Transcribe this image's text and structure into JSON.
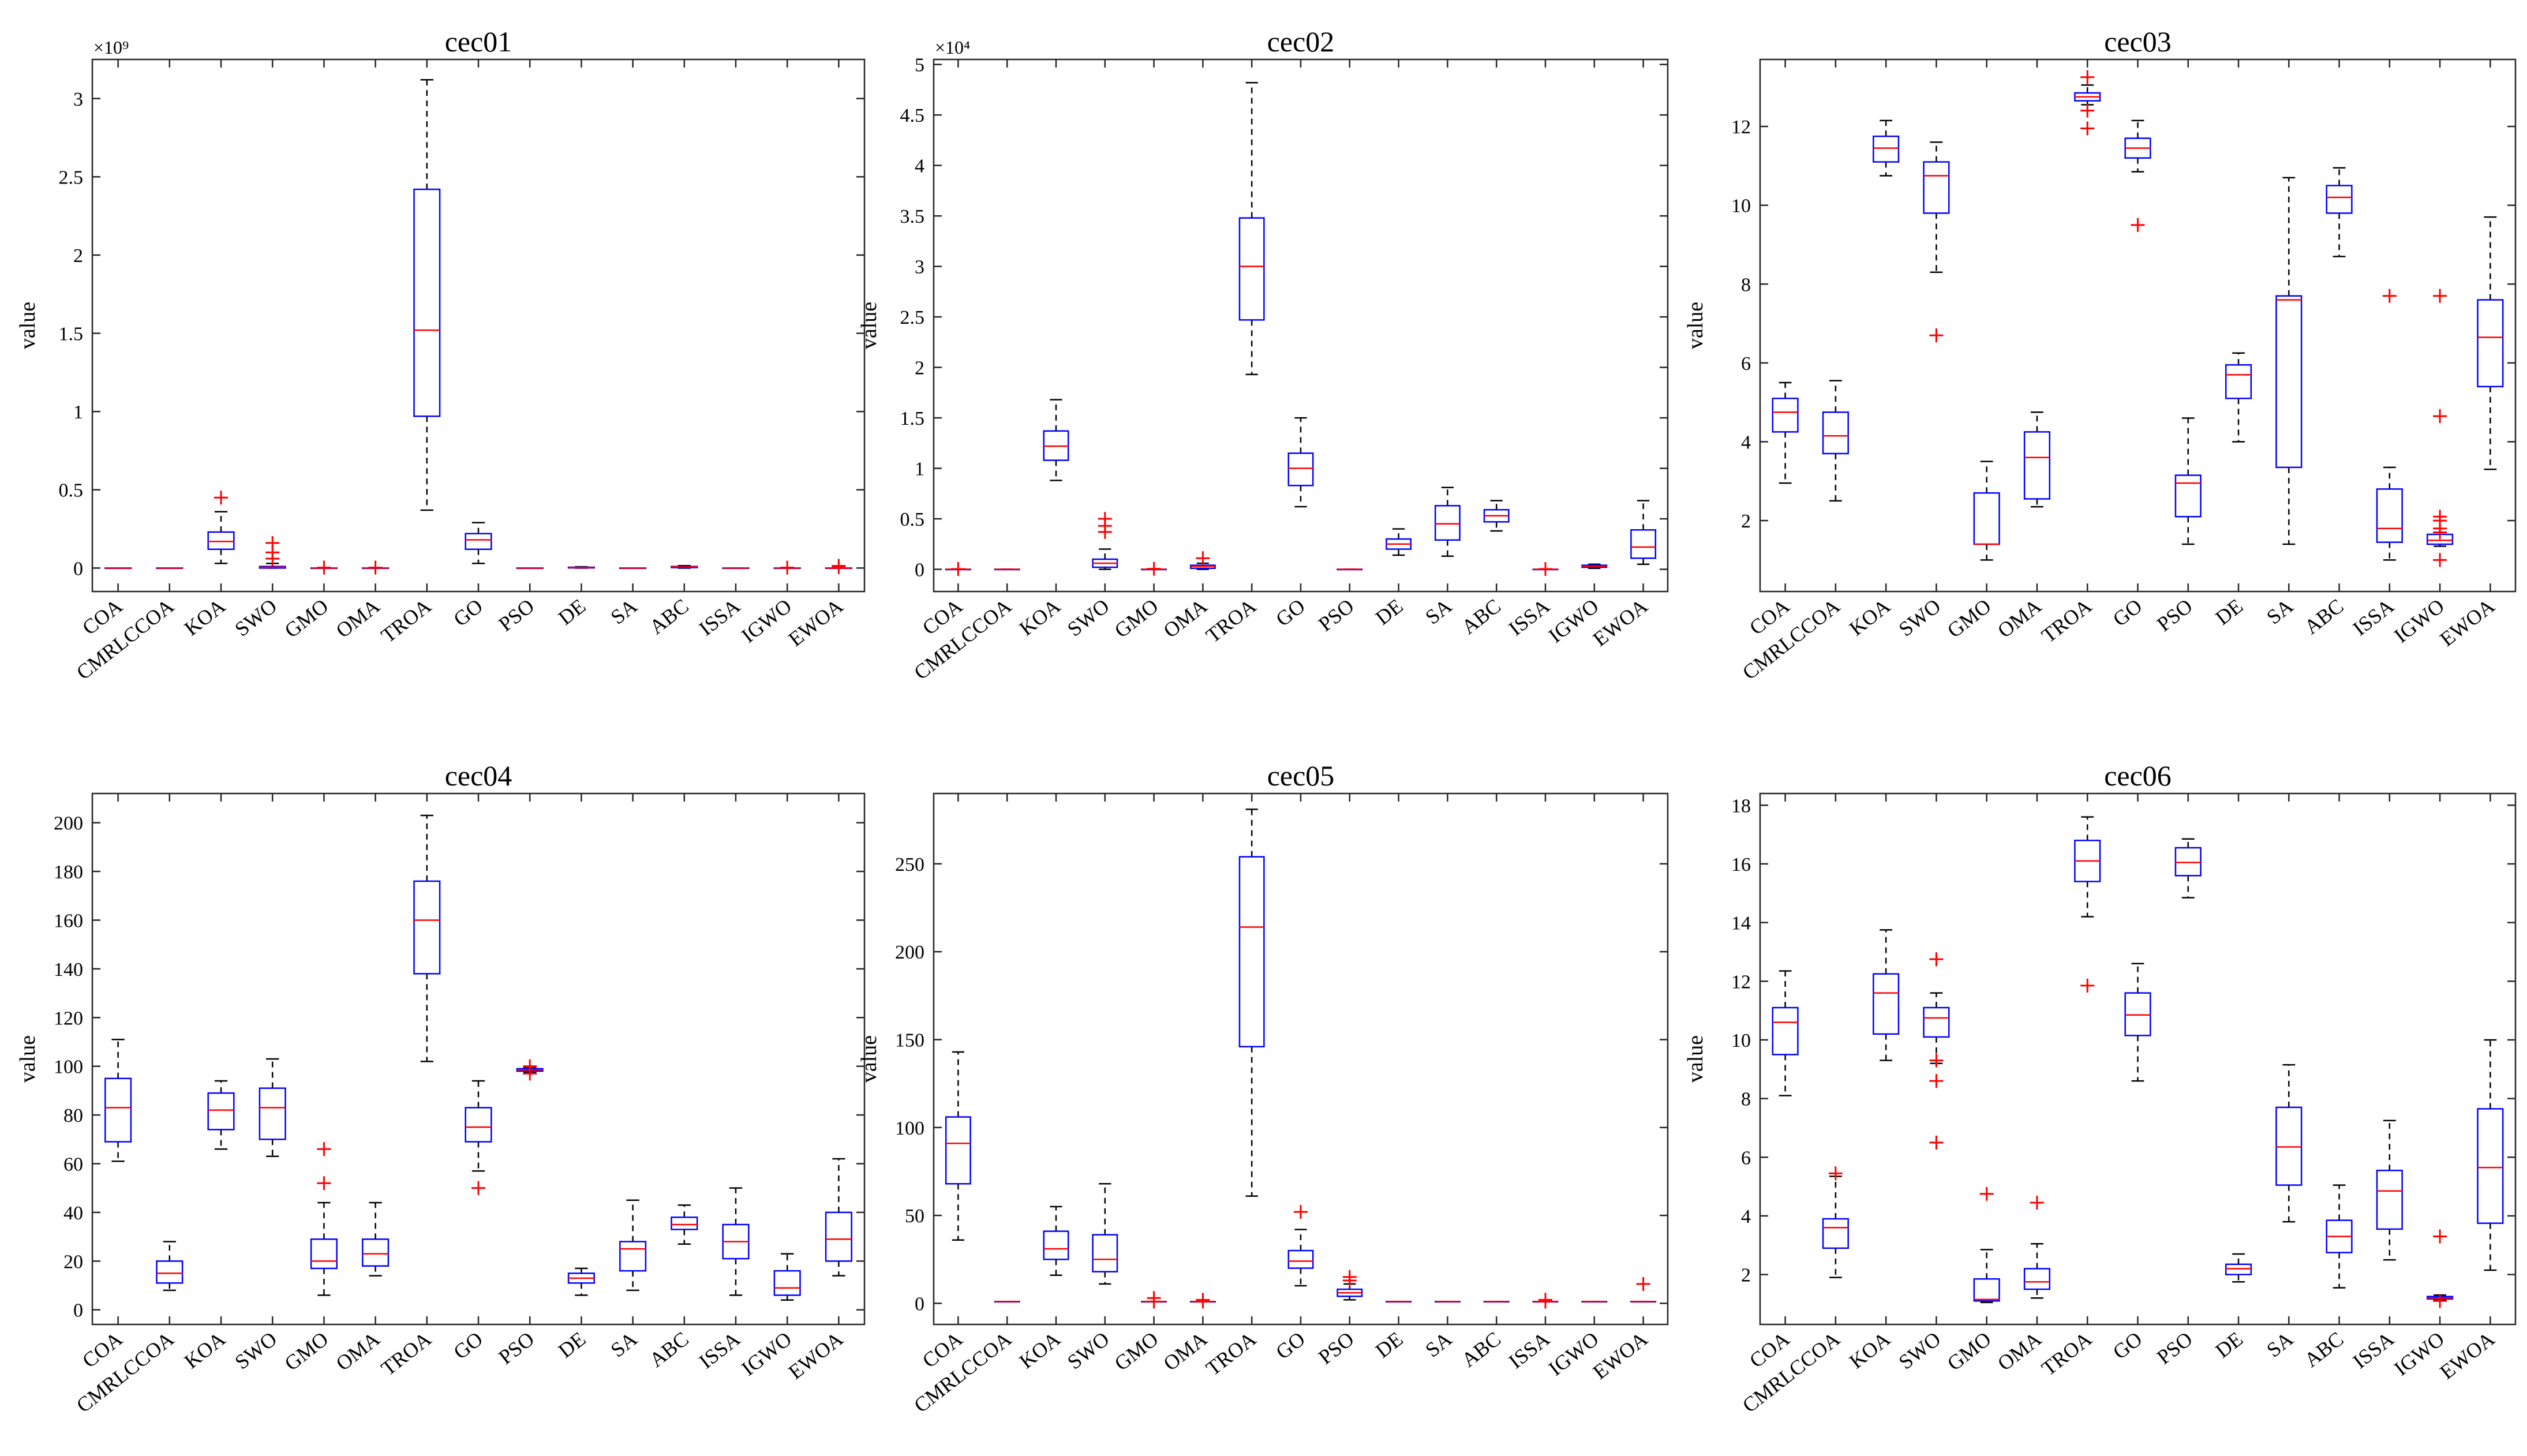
{
  "figure": {
    "ylabel": "value"
  },
  "chart_data": [
    {
      "type": "box",
      "title": "cec01",
      "ylabel": "value",
      "ylim": [
        -0.15,
        3.25
      ],
      "yticks": [
        0,
        0.5,
        1,
        1.5,
        2,
        2.5,
        3
      ],
      "ytick_labels": [
        "0",
        "0.5",
        "1",
        "1.5",
        "2",
        "2.5",
        "3"
      ],
      "multiplier_label": "×10⁹",
      "categories": [
        "COA",
        "CMRLCCOA",
        "KOA",
        "SWO",
        "GMO",
        "OMA",
        "TROA",
        "GO",
        "PSO",
        "DE",
        "SA",
        "ABC",
        "ISSA",
        "IGWO",
        "EWOA"
      ],
      "boxes": [
        {
          "lw": 0,
          "q1": 0,
          "med": 0,
          "q3": 0,
          "uw": 0,
          "out": []
        },
        {
          "lw": 0,
          "q1": 0,
          "med": 0,
          "q3": 0,
          "uw": 0,
          "out": []
        },
        {
          "lw": 0.03,
          "q1": 0.12,
          "med": 0.17,
          "q3": 0.23,
          "uw": 0.36,
          "out": [
            0.45
          ]
        },
        {
          "lw": 0,
          "q1": 0,
          "med": 0.005,
          "q3": 0.01,
          "uw": 0.03,
          "out": [
            0.06,
            0.1,
            0.16
          ]
        },
        {
          "lw": 0,
          "q1": 0,
          "med": 0,
          "q3": 0,
          "uw": 0,
          "out": [
            0.003
          ]
        },
        {
          "lw": 0,
          "q1": 0,
          "med": 0,
          "q3": 0,
          "uw": 0,
          "out": [
            0.003
          ]
        },
        {
          "lw": 0.37,
          "q1": 0.97,
          "med": 1.52,
          "q3": 2.42,
          "uw": 3.12,
          "out": []
        },
        {
          "lw": 0.03,
          "q1": 0.12,
          "med": 0.18,
          "q3": 0.22,
          "uw": 0.29,
          "out": []
        },
        {
          "lw": 0,
          "q1": 0,
          "med": 0,
          "q3": 0,
          "uw": 0,
          "out": []
        },
        {
          "lw": 0,
          "q1": 0.001,
          "med": 0.003,
          "q3": 0.005,
          "uw": 0.008,
          "out": []
        },
        {
          "lw": 0,
          "q1": 0,
          "med": 0,
          "q3": 0,
          "uw": 0,
          "out": []
        },
        {
          "lw": 0,
          "q1": 0.003,
          "med": 0.007,
          "q3": 0.01,
          "uw": 0.015,
          "out": []
        },
        {
          "lw": 0,
          "q1": 0,
          "med": 0,
          "q3": 0,
          "uw": 0,
          "out": []
        },
        {
          "lw": 0,
          "q1": 0,
          "med": 0,
          "q3": 0,
          "uw": 0,
          "out": [
            0.003
          ]
        },
        {
          "lw": 0,
          "q1": 0,
          "med": 0,
          "q3": 0,
          "uw": 0,
          "out": [
            0.006,
            0.014
          ]
        }
      ]
    },
    {
      "type": "box",
      "title": "cec02",
      "ylabel": "value",
      "ylim": [
        -0.22,
        5.05
      ],
      "yticks": [
        0,
        0.5,
        1,
        1.5,
        2,
        2.5,
        3,
        3.5,
        4,
        4.5,
        5
      ],
      "ytick_labels": [
        "0",
        "0.5",
        "1",
        "1.5",
        "2",
        "2.5",
        "3",
        "3.5",
        "4",
        "4.5",
        "5"
      ],
      "multiplier_label": "×10⁴",
      "categories": [
        "COA",
        "CMRLCCOA",
        "KOA",
        "SWO",
        "GMO",
        "OMA",
        "TROA",
        "GO",
        "PSO",
        "DE",
        "SA",
        "ABC",
        "ISSA",
        "IGWO",
        "EWOA"
      ],
      "boxes": [
        {
          "lw": 0,
          "q1": 0,
          "med": 0,
          "q3": 0,
          "uw": 0,
          "out": [
            0.003
          ]
        },
        {
          "lw": 0,
          "q1": 0,
          "med": 0,
          "q3": 0,
          "uw": 0,
          "out": []
        },
        {
          "lw": 0.88,
          "q1": 1.08,
          "med": 1.22,
          "q3": 1.37,
          "uw": 1.68,
          "out": []
        },
        {
          "lw": 0,
          "q1": 0.02,
          "med": 0.06,
          "q3": 0.1,
          "uw": 0.2,
          "out": [
            0.37,
            0.43,
            0.5
          ]
        },
        {
          "lw": 0,
          "q1": 0,
          "med": 0,
          "q3": 0,
          "uw": 0,
          "out": [
            0.005
          ]
        },
        {
          "lw": 0,
          "q1": 0.01,
          "med": 0.03,
          "q3": 0.04,
          "uw": 0.06,
          "out": [
            0.11
          ]
        },
        {
          "lw": 1.93,
          "q1": 2.47,
          "med": 3.0,
          "q3": 3.48,
          "uw": 4.82,
          "out": []
        },
        {
          "lw": 0.62,
          "q1": 0.83,
          "med": 1.0,
          "q3": 1.15,
          "uw": 1.5,
          "out": []
        },
        {
          "lw": 0,
          "q1": 0,
          "med": 0,
          "q3": 0,
          "uw": 0,
          "out": []
        },
        {
          "lw": 0.14,
          "q1": 0.2,
          "med": 0.25,
          "q3": 0.3,
          "uw": 0.4,
          "out": []
        },
        {
          "lw": 0.13,
          "q1": 0.29,
          "med": 0.45,
          "q3": 0.63,
          "uw": 0.81,
          "out": []
        },
        {
          "lw": 0.38,
          "q1": 0.47,
          "med": 0.53,
          "q3": 0.59,
          "uw": 0.68,
          "out": []
        },
        {
          "lw": 0,
          "q1": 0,
          "med": 0,
          "q3": 0,
          "uw": 0,
          "out": [
            0.003
          ]
        },
        {
          "lw": 0.01,
          "q1": 0.02,
          "med": 0.03,
          "q3": 0.04,
          "uw": 0.05,
          "out": []
        },
        {
          "lw": 0.05,
          "q1": 0.11,
          "med": 0.22,
          "q3": 0.39,
          "uw": 0.68,
          "out": []
        }
      ]
    },
    {
      "type": "box",
      "title": "cec03",
      "ylabel": "value",
      "ylim": [
        0.2,
        13.7
      ],
      "yticks": [
        2,
        4,
        6,
        8,
        10,
        12
      ],
      "ytick_labels": [
        "2",
        "4",
        "6",
        "8",
        "10",
        "12"
      ],
      "multiplier_label": "",
      "categories": [
        "COA",
        "CMRLCCOA",
        "KOA",
        "SWO",
        "GMO",
        "OMA",
        "TROA",
        "GO",
        "PSO",
        "DE",
        "SA",
        "ABC",
        "ISSA",
        "IGWO",
        "EWOA"
      ],
      "boxes": [
        {
          "lw": 2.95,
          "q1": 4.25,
          "med": 4.75,
          "q3": 5.1,
          "uw": 5.5,
          "out": []
        },
        {
          "lw": 2.5,
          "q1": 3.7,
          "med": 4.15,
          "q3": 4.75,
          "uw": 5.55,
          "out": []
        },
        {
          "lw": 10.75,
          "q1": 11.1,
          "med": 11.45,
          "q3": 11.75,
          "uw": 12.15,
          "out": []
        },
        {
          "lw": 8.3,
          "q1": 9.8,
          "med": 10.75,
          "q3": 11.1,
          "uw": 11.6,
          "out": [
            6.7
          ]
        },
        {
          "lw": 1.0,
          "q1": 1.4,
          "med": 1.4,
          "q3": 2.7,
          "uw": 3.5,
          "out": []
        },
        {
          "lw": 2.35,
          "q1": 2.55,
          "med": 3.6,
          "q3": 4.25,
          "uw": 4.75,
          "out": []
        },
        {
          "lw": 12.55,
          "q1": 12.65,
          "med": 12.75,
          "q3": 12.85,
          "uw": 13.05,
          "out": [
            11.95,
            12.4,
            13.25
          ]
        },
        {
          "lw": 10.85,
          "q1": 11.2,
          "med": 11.45,
          "q3": 11.7,
          "uw": 12.15,
          "out": [
            9.5
          ]
        },
        {
          "lw": 1.4,
          "q1": 2.1,
          "med": 2.95,
          "q3": 3.15,
          "uw": 4.6,
          "out": []
        },
        {
          "lw": 4.0,
          "q1": 5.1,
          "med": 5.7,
          "q3": 5.95,
          "uw": 6.25,
          "out": []
        },
        {
          "lw": 1.4,
          "q1": 3.35,
          "med": 7.6,
          "q3": 7.7,
          "uw": 10.7,
          "out": []
        },
        {
          "lw": 8.7,
          "q1": 9.8,
          "med": 10.2,
          "q3": 10.5,
          "uw": 10.95,
          "out": []
        },
        {
          "lw": 1.0,
          "q1": 1.45,
          "med": 1.8,
          "q3": 2.8,
          "uw": 3.35,
          "out": [
            7.7
          ]
        },
        {
          "lw": 1.35,
          "q1": 1.4,
          "med": 1.5,
          "q3": 1.65,
          "uw": 1.7,
          "out": [
            1.0,
            1.7,
            1.8,
            2.0,
            2.1,
            4.65,
            7.7
          ]
        },
        {
          "lw": 3.3,
          "q1": 5.4,
          "med": 6.65,
          "q3": 7.6,
          "uw": 9.7,
          "out": []
        }
      ]
    },
    {
      "type": "box",
      "title": "cec04",
      "ylabel": "value",
      "ylim": [
        -6,
        212
      ],
      "yticks": [
        0,
        20,
        40,
        60,
        80,
        100,
        120,
        140,
        160,
        180,
        200
      ],
      "ytick_labels": [
        "0",
        "20",
        "40",
        "60",
        "80",
        "100",
        "120",
        "140",
        "160",
        "180",
        "200"
      ],
      "multiplier_label": "",
      "categories": [
        "COA",
        "CMRLCCOA",
        "KOA",
        "SWO",
        "GMO",
        "OMA",
        "TROA",
        "GO",
        "PSO",
        "DE",
        "SA",
        "ABC",
        "ISSA",
        "IGWO",
        "EWOA"
      ],
      "boxes": [
        {
          "lw": 61,
          "q1": 69,
          "med": 83,
          "q3": 95,
          "uw": 111,
          "out": []
        },
        {
          "lw": 8,
          "q1": 11,
          "med": 15,
          "q3": 20,
          "uw": 28,
          "out": []
        },
        {
          "lw": 66,
          "q1": 74,
          "med": 82,
          "q3": 89,
          "uw": 94,
          "out": []
        },
        {
          "lw": 63,
          "q1": 70,
          "med": 83,
          "q3": 91,
          "uw": 103,
          "out": []
        },
        {
          "lw": 6,
          "q1": 17,
          "med": 20,
          "q3": 29,
          "uw": 44,
          "out": [
            52,
            66
          ]
        },
        {
          "lw": 14,
          "q1": 18,
          "med": 23,
          "q3": 29,
          "uw": 44,
          "out": []
        },
        {
          "lw": 102,
          "q1": 138,
          "med": 160,
          "q3": 176,
          "uw": 203,
          "out": []
        },
        {
          "lw": 57,
          "q1": 69,
          "med": 75,
          "q3": 83,
          "uw": 94,
          "out": [
            50
          ]
        },
        {
          "lw": 97.5,
          "q1": 98,
          "med": 98.5,
          "q3": 99,
          "uw": 99.5,
          "out": [
            97,
            100
          ]
        },
        {
          "lw": 6,
          "q1": 11,
          "med": 13,
          "q3": 15,
          "uw": 17,
          "out": []
        },
        {
          "lw": 8,
          "q1": 16,
          "med": 25,
          "q3": 28,
          "uw": 45,
          "out": []
        },
        {
          "lw": 27,
          "q1": 33,
          "med": 35,
          "q3": 38,
          "uw": 43,
          "out": []
        },
        {
          "lw": 6,
          "q1": 21,
          "med": 28,
          "q3": 35,
          "uw": 50,
          "out": []
        },
        {
          "lw": 4,
          "q1": 6,
          "med": 9,
          "q3": 16,
          "uw": 23,
          "out": []
        },
        {
          "lw": 14,
          "q1": 20,
          "med": 29,
          "q3": 40,
          "uw": 62,
          "out": []
        }
      ]
    },
    {
      "type": "box",
      "title": "cec05",
      "ylabel": "value",
      "ylim": [
        -12,
        290
      ],
      "yticks": [
        0,
        50,
        100,
        150,
        200,
        250
      ],
      "ytick_labels": [
        "0",
        "50",
        "100",
        "150",
        "200",
        "250"
      ],
      "multiplier_label": "",
      "categories": [
        "COA",
        "CMRLCCOA",
        "KOA",
        "SWO",
        "GMO",
        "OMA",
        "TROA",
        "GO",
        "PSO",
        "DE",
        "SA",
        "ABC",
        "ISSA",
        "IGWO",
        "EWOA"
      ],
      "boxes": [
        {
          "lw": 36,
          "q1": 68,
          "med": 91,
          "q3": 106,
          "uw": 143,
          "out": []
        },
        {
          "lw": 1,
          "q1": 1,
          "med": 1,
          "q3": 1,
          "uw": 1,
          "out": []
        },
        {
          "lw": 16,
          "q1": 25,
          "med": 31,
          "q3": 41,
          "uw": 55,
          "out": []
        },
        {
          "lw": 11,
          "q1": 18,
          "med": 25,
          "q3": 39,
          "uw": 68,
          "out": []
        },
        {
          "lw": 1,
          "q1": 1,
          "med": 1,
          "q3": 1,
          "uw": 1,
          "out": [
            1,
            3
          ]
        },
        {
          "lw": 1,
          "q1": 1,
          "med": 1,
          "q3": 1,
          "uw": 1,
          "out": [
            1,
            2
          ]
        },
        {
          "lw": 61,
          "q1": 146,
          "med": 214,
          "q3": 254,
          "uw": 281,
          "out": []
        },
        {
          "lw": 10,
          "q1": 20,
          "med": 24,
          "q3": 30,
          "uw": 42,
          "out": [
            52
          ]
        },
        {
          "lw": 2,
          "q1": 4,
          "med": 6,
          "q3": 8,
          "uw": 11,
          "out": [
            13,
            15
          ]
        },
        {
          "lw": 1,
          "q1": 1,
          "med": 1,
          "q3": 1,
          "uw": 1,
          "out": []
        },
        {
          "lw": 1,
          "q1": 1,
          "med": 1,
          "q3": 1,
          "uw": 1,
          "out": []
        },
        {
          "lw": 1,
          "q1": 1,
          "med": 1,
          "q3": 1,
          "uw": 1,
          "out": []
        },
        {
          "lw": 1,
          "q1": 1,
          "med": 1,
          "q3": 1,
          "uw": 1,
          "out": [
            1,
            2
          ]
        },
        {
          "lw": 1,
          "q1": 1,
          "med": 1,
          "q3": 1,
          "uw": 1,
          "out": []
        },
        {
          "lw": 1,
          "q1": 1,
          "med": 1,
          "q3": 1,
          "uw": 1,
          "out": [
            11
          ]
        }
      ]
    },
    {
      "type": "box",
      "title": "cec06",
      "ylabel": "value",
      "ylim": [
        0.3,
        18.4
      ],
      "yticks": [
        2,
        4,
        6,
        8,
        10,
        12,
        14,
        16,
        18
      ],
      "ytick_labels": [
        "2",
        "4",
        "6",
        "8",
        "10",
        "12",
        "14",
        "16",
        "18"
      ],
      "multiplier_label": "",
      "categories": [
        "COA",
        "CMRLCCOA",
        "KOA",
        "SWO",
        "GMO",
        "OMA",
        "TROA",
        "GO",
        "PSO",
        "DE",
        "SA",
        "ABC",
        "ISSA",
        "IGWO",
        "EWOA"
      ],
      "boxes": [
        {
          "lw": 8.1,
          "q1": 9.5,
          "med": 10.6,
          "q3": 11.1,
          "uw": 12.35,
          "out": []
        },
        {
          "lw": 1.9,
          "q1": 2.9,
          "med": 3.6,
          "q3": 3.9,
          "uw": 5.35,
          "out": [
            5.45
          ]
        },
        {
          "lw": 9.3,
          "q1": 10.2,
          "med": 11.6,
          "q3": 12.25,
          "uw": 13.75,
          "out": []
        },
        {
          "lw": 9.2,
          "q1": 10.1,
          "med": 10.75,
          "q3": 11.1,
          "uw": 11.6,
          "out": [
            6.5,
            8.6,
            9.3,
            12.75
          ]
        },
        {
          "lw": 1.05,
          "q1": 1.1,
          "med": 1.15,
          "q3": 1.85,
          "uw": 2.85,
          "out": [
            4.75
          ]
        },
        {
          "lw": 1.2,
          "q1": 1.5,
          "med": 1.75,
          "q3": 2.2,
          "uw": 3.05,
          "out": [
            4.45
          ]
        },
        {
          "lw": 14.2,
          "q1": 15.4,
          "med": 16.1,
          "q3": 16.8,
          "uw": 17.6,
          "out": [
            11.85
          ]
        },
        {
          "lw": 8.6,
          "q1": 10.15,
          "med": 10.85,
          "q3": 11.6,
          "uw": 12.6,
          "out": []
        },
        {
          "lw": 14.85,
          "q1": 15.6,
          "med": 16.05,
          "q3": 16.55,
          "uw": 16.85,
          "out": []
        },
        {
          "lw": 1.75,
          "q1": 2.0,
          "med": 2.2,
          "q3": 2.35,
          "uw": 2.7,
          "out": []
        },
        {
          "lw": 3.8,
          "q1": 5.05,
          "med": 6.35,
          "q3": 7.7,
          "uw": 9.15,
          "out": []
        },
        {
          "lw": 1.55,
          "q1": 2.75,
          "med": 3.3,
          "q3": 3.85,
          "uw": 5.05,
          "out": []
        },
        {
          "lw": 2.5,
          "q1": 3.55,
          "med": 4.85,
          "q3": 5.55,
          "uw": 7.25,
          "out": []
        },
        {
          "lw": 1.15,
          "q1": 1.17,
          "med": 1.2,
          "q3": 1.25,
          "uw": 1.3,
          "out": [
            1.1,
            3.3
          ]
        },
        {
          "lw": 2.15,
          "q1": 3.75,
          "med": 5.65,
          "q3": 7.65,
          "uw": 10.0,
          "out": []
        }
      ]
    }
  ]
}
